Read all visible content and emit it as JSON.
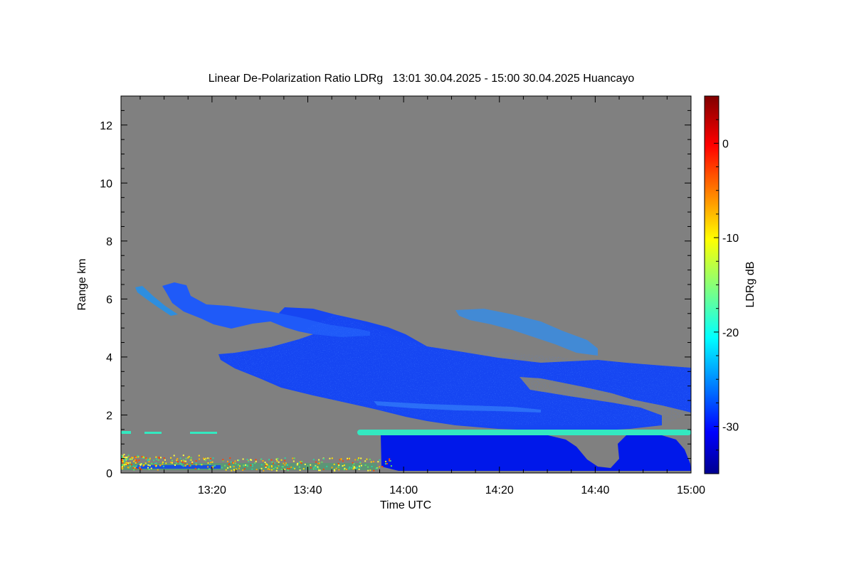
{
  "chart_data": {
    "type": "heatmap",
    "title": "Linear De-Polarization Ratio LDRg   13:01 30.04.2025 - 15:00 30.04.2025 Huancayo",
    "xlabel": "Time UTC",
    "ylabel": "Range km",
    "colorbar_label": "LDRg dB",
    "x_ticks": [
      "13:20",
      "13:40",
      "14:00",
      "14:20",
      "14:40",
      "15:00"
    ],
    "y_ticks": [
      "0",
      "2",
      "4",
      "6",
      "8",
      "10",
      "12"
    ],
    "colorbar_ticks": [
      "0",
      "-10",
      "-20",
      "-30"
    ],
    "x_range_minutes_utc": [
      781,
      900
    ],
    "x_tick_values_minutes_utc": [
      800,
      820,
      840,
      860,
      880,
      900
    ],
    "ylim_km": [
      0,
      13
    ],
    "colorbar_range_db": [
      -35,
      5
    ],
    "colorbar_tick_values_db": [
      0,
      -10,
      -20,
      -30
    ],
    "colormap": "jet",
    "no_data_color": "#808080",
    "features": [
      {
        "kind": "cloud-layer",
        "time_start": "13:03",
        "time_end": "15:00",
        "range_bottom_km": 2.0,
        "range_top_km": 6.5,
        "ldr_db": -29
      },
      {
        "kind": "thin-cirrus",
        "time_start": "14:00",
        "time_end": "14:40",
        "range_bottom_km": 4.5,
        "range_top_km": 5.5,
        "ldr_db": -22
      },
      {
        "kind": "bright-band",
        "time_start": "13:51",
        "time_end": "15:00",
        "range_km": 1.4,
        "ldr_db": -20
      },
      {
        "kind": "precipitation",
        "time_start": "13:57",
        "time_end": "15:00",
        "range_bottom_km": 0.1,
        "range_top_km": 1.3,
        "ldr_db": -32
      },
      {
        "kind": "near-surface-noise",
        "time_start": "13:01",
        "time_end": "13:57",
        "range_bottom_km": 0.1,
        "range_top_km": 0.4,
        "ldr_db": -10
      }
    ]
  }
}
